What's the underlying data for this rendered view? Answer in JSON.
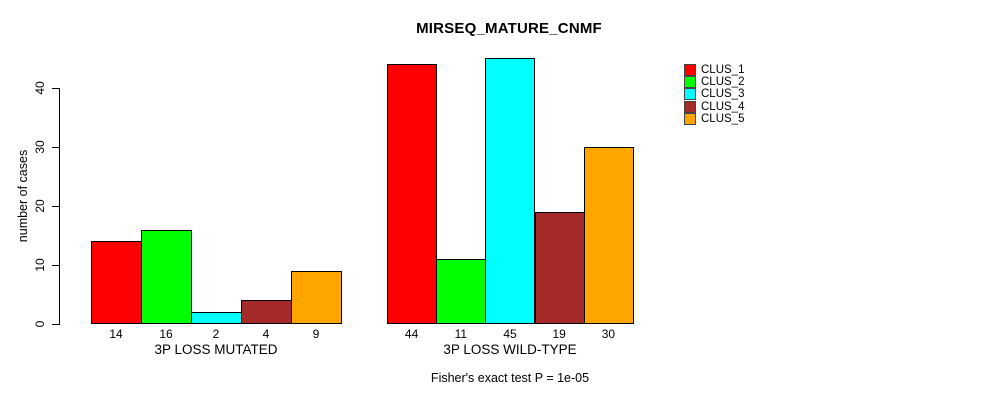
{
  "chart_data": {
    "type": "bar",
    "title": "MIRSEQ_MATURE_CNMF",
    "ylabel": "number of cases",
    "ylim": [
      0,
      40
    ],
    "yticks": [
      0,
      10,
      20,
      30,
      40
    ],
    "grid": false,
    "legend_position": "right",
    "categories": [
      "3P LOSS MUTATED",
      "3P LOSS WILD-TYPE"
    ],
    "series": [
      {
        "name": "CLUS_1",
        "color": "#FF0000",
        "values": [
          14,
          44
        ]
      },
      {
        "name": "CLUS_2",
        "color": "#00FF00",
        "values": [
          16,
          11
        ]
      },
      {
        "name": "CLUS_3",
        "color": "#00FFFF",
        "values": [
          2,
          45
        ]
      },
      {
        "name": "CLUS_4",
        "color": "#A52A2A",
        "values": [
          4,
          19
        ]
      },
      {
        "name": "CLUS_5",
        "color": "#FFA500",
        "values": [
          9,
          30
        ]
      }
    ],
    "bar_value_labels": [
      [
        14,
        16,
        2,
        4,
        9
      ],
      [
        44,
        11,
        45,
        19,
        30
      ]
    ],
    "caption": "Fisher's exact test P = 1e-05",
    "background_color": "#FFFFFF",
    "axis_color": "#000000"
  }
}
